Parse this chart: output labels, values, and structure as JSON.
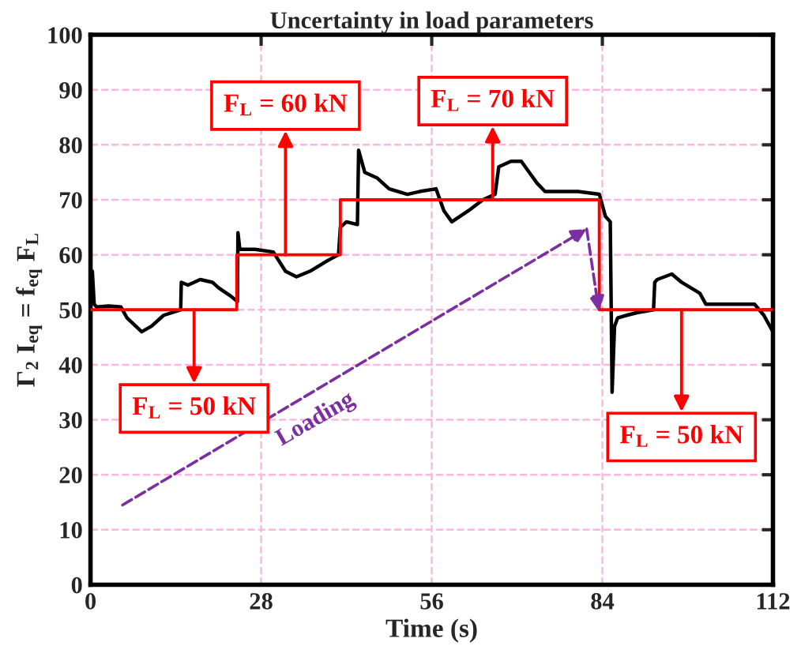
{
  "chart_data": {
    "type": "line",
    "title": "Uncertainty in load parameters",
    "xlabel": "Time (s)",
    "ylabel": "Γ$_{2}$ I$_{eq}$ = f$_{eq}$ F$_{L}$",
    "xlim": [
      0,
      112
    ],
    "ylim": [
      0,
      100
    ],
    "xticks": [
      0,
      28,
      56,
      84,
      112
    ],
    "yticks": [
      0,
      10,
      20,
      30,
      40,
      50,
      60,
      70,
      80,
      90,
      100
    ],
    "grid": true,
    "legend": false,
    "line_style": "solid",
    "marker": "none",
    "series": [
      {
        "color": "#000000",
        "x": [
          0,
          0.3,
          0.6,
          1,
          3,
          5,
          6,
          8.4,
          10,
          12,
          14.8,
          14.9,
          16,
          18,
          20,
          21,
          23,
          24.1,
          24.2,
          24.5,
          27,
          30,
          32,
          33.8,
          36,
          39,
          40.7,
          41,
          42,
          43.8,
          44,
          45,
          47,
          49,
          52,
          54,
          56.7,
          58,
          59.3,
          62,
          64.4,
          66.4,
          67,
          69,
          70.7,
          72,
          73.3,
          74.6,
          80,
          83.5,
          84.5,
          85.3,
          85.6,
          86,
          86.5,
          88,
          89.8,
          92.4,
          92.6,
          93,
          95.4,
          97,
          100,
          101,
          105,
          109,
          110.5,
          112
        ],
        "values": [
          50,
          57,
          51,
          50.5,
          50.7,
          50.5,
          48.5,
          46,
          47,
          49,
          50,
          55,
          54.5,
          55.5,
          55,
          54,
          52.5,
          51.5,
          64,
          61,
          61,
          60.5,
          57,
          56,
          57,
          59,
          60,
          65,
          66,
          65.5,
          79,
          75,
          74,
          72,
          71,
          71.5,
          72,
          68,
          66,
          68,
          70,
          71,
          76,
          77,
          77,
          75,
          73,
          71.5,
          71.5,
          71,
          67,
          66,
          35,
          47,
          48.5,
          49,
          49.5,
          50,
          55,
          55.5,
          56.5,
          55,
          53,
          51,
          51,
          51,
          49,
          46
        ]
      },
      {
        "type": "line",
        "color": "#ff0000",
        "x": [
          0,
          24,
          24,
          41,
          41,
          83.5,
          83.5,
          112
        ],
        "values": [
          50,
          50,
          60,
          60,
          70,
          70,
          50,
          50
        ]
      }
    ],
    "annotations": [
      {
        "text": "F$_{L}$ = 50 kN",
        "x": 17,
        "y": 50
      },
      {
        "text": "F$_{L}$ = 60 kN",
        "x": 32,
        "y": 60
      },
      {
        "text": "F$_{L}$ = 70 kN",
        "x": 66,
        "y": 70
      },
      {
        "text": "F$_{L}$ = 50 kN",
        "x": 97,
        "y": 50
      },
      "Loading"
    ]
  }
}
